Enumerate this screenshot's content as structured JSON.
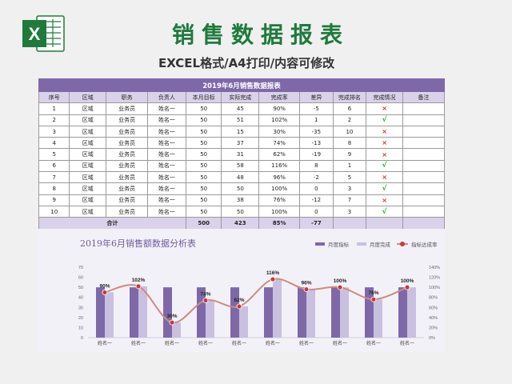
{
  "header": {
    "title": "销售数据报表",
    "subtitle": "EXCEL格式/A4打印/内容可修改",
    "logo_letter": "X"
  },
  "table": {
    "caption": "2019年6月销售数据报表",
    "columns": [
      "序号",
      "区域",
      "职务",
      "负责人",
      "本月目标",
      "实际完成",
      "完成率",
      "差异",
      "完成排名",
      "完成情况",
      "备注"
    ],
    "rows": [
      [
        "1",
        "区域",
        "业务员",
        "姓名一",
        "50",
        "45",
        "90%",
        "-5",
        "6",
        "cross",
        ""
      ],
      [
        "2",
        "区域",
        "业务员",
        "姓名一",
        "50",
        "51",
        "102%",
        "1",
        "2",
        "check",
        ""
      ],
      [
        "3",
        "区域",
        "业务员",
        "姓名一",
        "50",
        "15",
        "30%",
        "-35",
        "10",
        "cross",
        ""
      ],
      [
        "4",
        "区域",
        "业务员",
        "姓名一",
        "50",
        "37",
        "74%",
        "-13",
        "8",
        "cross",
        ""
      ],
      [
        "5",
        "区域",
        "业务员",
        "姓名一",
        "50",
        "31",
        "62%",
        "-19",
        "9",
        "cross",
        ""
      ],
      [
        "6",
        "区域",
        "业务员",
        "姓名一",
        "50",
        "58",
        "116%",
        "8",
        "1",
        "check",
        ""
      ],
      [
        "7",
        "区域",
        "业务员",
        "姓名一",
        "50",
        "48",
        "96%",
        "-2",
        "5",
        "cross",
        ""
      ],
      [
        "8",
        "区域",
        "业务员",
        "姓名一",
        "50",
        "50",
        "100%",
        "0",
        "3",
        "check",
        ""
      ],
      [
        "9",
        "区域",
        "业务员",
        "姓名一",
        "50",
        "38",
        "76%",
        "-12",
        "7",
        "cross",
        ""
      ],
      [
        "10",
        "区域",
        "业务员",
        "姓名一",
        "50",
        "50",
        "100%",
        "0",
        "3",
        "check",
        ""
      ]
    ],
    "total": {
      "label": "合计",
      "target": "500",
      "actual": "423",
      "rate": "85%",
      "diff": "-77"
    }
  },
  "chart_data": {
    "type": "bar",
    "title": "2019年6月销售额数据分析表",
    "categories": [
      "姓名一",
      "姓名一",
      "姓名一",
      "姓名一",
      "姓名一",
      "姓名一",
      "姓名一",
      "姓名一",
      "姓名一",
      "姓名一"
    ],
    "series": [
      {
        "name": "月度指标",
        "type": "bar",
        "axis": "left",
        "color": "#7e68a8",
        "values": [
          50,
          50,
          50,
          50,
          50,
          50,
          50,
          50,
          50,
          50
        ]
      },
      {
        "name": "月度完成",
        "type": "bar",
        "axis": "left",
        "color": "#c9c0e0",
        "values": [
          45,
          51,
          15,
          37,
          31,
          58,
          48,
          50,
          38,
          50
        ]
      },
      {
        "name": "指标达成率",
        "type": "line",
        "axis": "right",
        "color": "#d08a7e",
        "marker_color": "#c83a3a",
        "values": [
          90,
          102,
          30,
          74,
          62,
          116,
          96,
          100,
          76,
          100
        ],
        "labels": [
          "90%",
          "102%",
          "30%",
          "74%",
          "62%",
          "116%",
          "96%",
          "100%",
          "76%",
          "100%"
        ]
      }
    ],
    "y_left": {
      "ylim": [
        0,
        70
      ],
      "ticks": [
        "0",
        "10",
        "20",
        "30",
        "40",
        "50",
        "60",
        "70"
      ]
    },
    "y_right": {
      "ylim": [
        0,
        140
      ],
      "ticks": [
        "0%",
        "20%",
        "40%",
        "60%",
        "80%",
        "100%",
        "120%",
        "140%"
      ]
    },
    "legend_position": "top-right",
    "grid": false
  }
}
